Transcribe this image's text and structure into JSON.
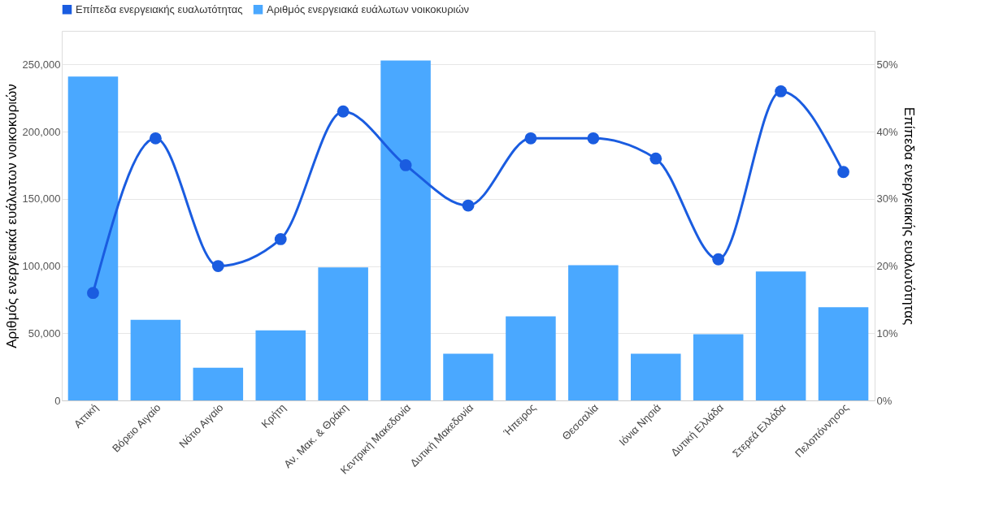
{
  "chart_data": {
    "type": "bar",
    "categories": [
      "Αττική",
      "Βόρειο Αιγαίο",
      "Νότιο Αιγαίο",
      "Κρήτη",
      "Αν. Μακ. & Θράκη",
      "Κεντρική Μακεδονία",
      "Δυτική Μακεδονία",
      "Ήπειρος",
      "Θεσσαλία",
      "Ιόνια Νησιά",
      "Δυτική Ελλάδα",
      "Στερεά Ελλάδα",
      "Πελοπόννησος"
    ],
    "series": [
      {
        "name": "Επίπεδα ενεργειακής ευαλωτότητας",
        "type": "line",
        "axis": "y2",
        "color": "#1a5ce0",
        "values": [
          16,
          39,
          20,
          24,
          43,
          35,
          29,
          39,
          39,
          36,
          21,
          46,
          34
        ]
      },
      {
        "name": "Αριθμός ενεργειακά ευάλωτων νοικοκυριών",
        "color": "#4aa8ff",
        "values": [
          241000,
          60000,
          24300,
          52100,
          99000,
          252900,
          34700,
          62500,
          100700,
          34700,
          49200,
          96000,
          69400
        ]
      }
    ],
    "ylabel": "Αριθμός ενεργειακά ευάλωτων νοικοκυριών",
    "y2label": "Επίπεδα ενεργειακής ευαλωτότητας",
    "ylim": [
      0,
      275000
    ],
    "yticks": [
      {
        "value": 0,
        "label": "0"
      },
      {
        "value": 50000,
        "label": "50,000"
      },
      {
        "value": 100000,
        "label": "100,000"
      },
      {
        "value": 150000,
        "label": "150,000"
      },
      {
        "value": 200000,
        "label": "200,000"
      },
      {
        "value": 250000,
        "label": "250,000"
      }
    ],
    "y2lim": [
      0,
      55
    ],
    "y2ticks": [
      {
        "value": 0,
        "label": "0%"
      },
      {
        "value": 10,
        "label": "10%"
      },
      {
        "value": 20,
        "label": "20%"
      },
      {
        "value": 30,
        "label": "30%"
      },
      {
        "value": 40,
        "label": "40%"
      },
      {
        "value": 50,
        "label": "50%"
      }
    ],
    "grid": "y",
    "legend": "top left",
    "marker": "circle",
    "line_style": "solid"
  }
}
